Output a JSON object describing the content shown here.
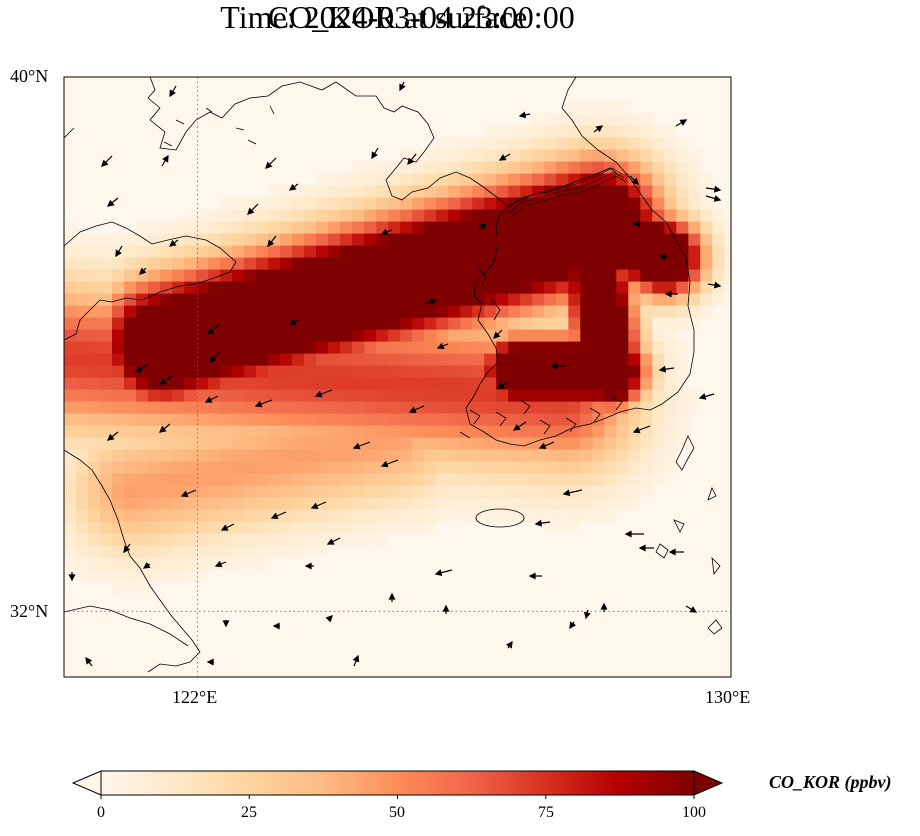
{
  "title": "CO_KOR at surface",
  "time": "Time: 2024-03-04 23:00:00",
  "lat_ticks": [
    "40°N",
    "32°N"
  ],
  "lon_ticks": [
    "122°E",
    "130°E"
  ],
  "colorbar": {
    "label": "CO_KOR (ppbv)",
    "ticks": [
      "0",
      "25",
      "50",
      "75",
      "100"
    ],
    "min": 0,
    "max": 100,
    "extend": "both",
    "colormap": "OrRd",
    "colors": [
      "#fff7ec",
      "#fee8c8",
      "#fdd49e",
      "#fdbb84",
      "#fc8d59",
      "#ef6548",
      "#d7301f",
      "#b30000",
      "#7f0000"
    ]
  },
  "map": {
    "extent": {
      "lon_min": 120,
      "lon_max": 130,
      "lat_min": 31,
      "lat_max": 40
    },
    "gridlines": {
      "lon": [
        122
      ],
      "lat": [
        32
      ],
      "style": "dotted"
    },
    "quantity": "CO_KOR (ppbv)",
    "plume_axes": [
      {
        "from": [
          121.5,
          36.0
        ],
        "to": [
          128.0,
          37.8
        ],
        "width": 0.9,
        "peak_ppbv": 100
      },
      {
        "from": [
          128.0,
          37.8
        ],
        "to": [
          129.0,
          37.3
        ],
        "width": 0.55,
        "peak_ppbv": 100
      },
      {
        "from": [
          126.8,
          35.6
        ],
        "to": [
          128.2,
          35.6
        ],
        "width": 0.5,
        "peak_ppbv": 100
      },
      {
        "from": [
          128.0,
          36.9
        ],
        "to": [
          128.2,
          35.5
        ],
        "width": 0.45,
        "peak_ppbv": 100
      },
      {
        "from": [
          120.0,
          35.8
        ],
        "to": [
          127.5,
          35.2
        ],
        "width": 1.1,
        "peak_ppbv": 45
      },
      {
        "from": [
          121.0,
          33.8
        ],
        "to": [
          125.0,
          34.6
        ],
        "width": 0.9,
        "peak_ppbv": 28
      }
    ]
  }
}
